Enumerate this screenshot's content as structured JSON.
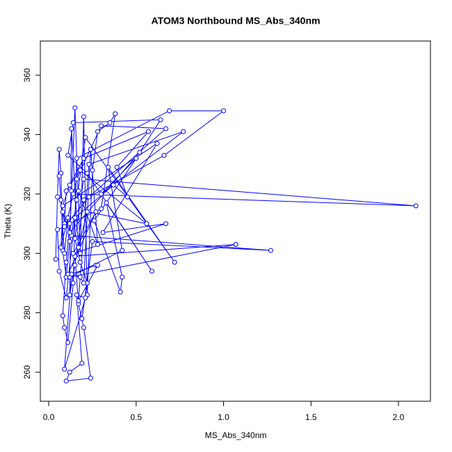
{
  "chart_data": {
    "type": "line",
    "title": "ATOM3 Northbound MS_Abs_340nm",
    "x_label": "MS_Abs_340nm",
    "y_label": "Theta (K)",
    "color": "#0000ff",
    "markers": true,
    "x": [
      0.04,
      0.05,
      0.06,
      0.07,
      0.08,
      0.1,
      0.12,
      0.13,
      0.15,
      0.18,
      0.2,
      0.22,
      0.25,
      0.28,
      0.35,
      0.38,
      0.3,
      0.12,
      0.1,
      0.08,
      0.09,
      0.11,
      0.14,
      0.16,
      0.69,
      1.0,
      0.66,
      0.2,
      0.15,
      0.12,
      0.13,
      0.17,
      0.22,
      0.56,
      0.18,
      0.1,
      0.09,
      0.07,
      0.06,
      0.09,
      0.11,
      0.14,
      2.1,
      0.2,
      0.15,
      0.18,
      0.22,
      0.19,
      0.25,
      1.27,
      0.13,
      0.16,
      0.21,
      0.72,
      0.34,
      0.42,
      0.12,
      1.07,
      0.15,
      0.17,
      0.2,
      0.24,
      0.1,
      0.12,
      0.19,
      0.16,
      0.21,
      0.09,
      0.13,
      0.27,
      0.28,
      0.17,
      0.23,
      0.77,
      0.3,
      0.5,
      0.26,
      0.41,
      0.42,
      0.33,
      0.59,
      0.22,
      0.11,
      0.14,
      0.64,
      0.52,
      0.12,
      0.08,
      0.07,
      0.16,
      0.3,
      0.67,
      0.23,
      0.09,
      0.05,
      0.06,
      0.1,
      0.15,
      0.37,
      0.45,
      0.39,
      0.57,
      0.2,
      0.12,
      0.08,
      0.62,
      0.31,
      0.67,
      0.14,
      0.27,
      0.11,
      0.18,
      0.2,
      0.24,
      0.28,
      0.17
    ],
    "values": [
      298,
      319,
      335,
      327,
      301,
      292,
      304,
      321,
      349,
      300,
      346,
      286,
      328,
      341,
      344,
      347,
      315,
      310,
      297,
      279,
      275,
      270,
      290,
      332,
      348,
      348,
      333,
      318,
      296,
      286,
      342,
      302,
      314,
      310,
      328,
      321,
      310,
      318,
      326,
      300,
      312,
      320,
      316,
      325,
      305,
      297,
      290,
      278,
      304,
      301,
      306,
      318,
      339,
      297,
      329,
      301,
      292,
      303,
      299,
      283,
      275,
      258,
      257,
      260,
      263,
      286,
      285,
      261,
      293,
      296,
      296,
      284,
      330,
      341,
      320,
      332,
      311,
      287,
      292,
      317,
      294,
      327,
      333,
      344,
      345,
      334,
      307,
      314,
      302,
      325,
      343,
      342,
      319,
      309,
      308,
      294,
      285,
      312,
      323,
      319,
      329,
      341,
      332,
      323,
      316,
      337,
      307,
      310,
      300,
      314,
      293,
      292,
      290,
      335,
      303,
      321
    ],
    "xlim": [
      -0.048,
      2.183
    ],
    "ylim": [
      250.2,
      371.5
    ],
    "xticks": [
      {
        "value": 0,
        "label": "0.0"
      },
      {
        "value": 0.5,
        "label": "0.5"
      },
      {
        "value": 1,
        "label": "1.0"
      },
      {
        "value": 1.5,
        "label": "1.5"
      },
      {
        "value": 2,
        "label": "2.0"
      }
    ],
    "yticks": [
      260,
      280,
      300,
      320,
      340,
      360
    ]
  }
}
